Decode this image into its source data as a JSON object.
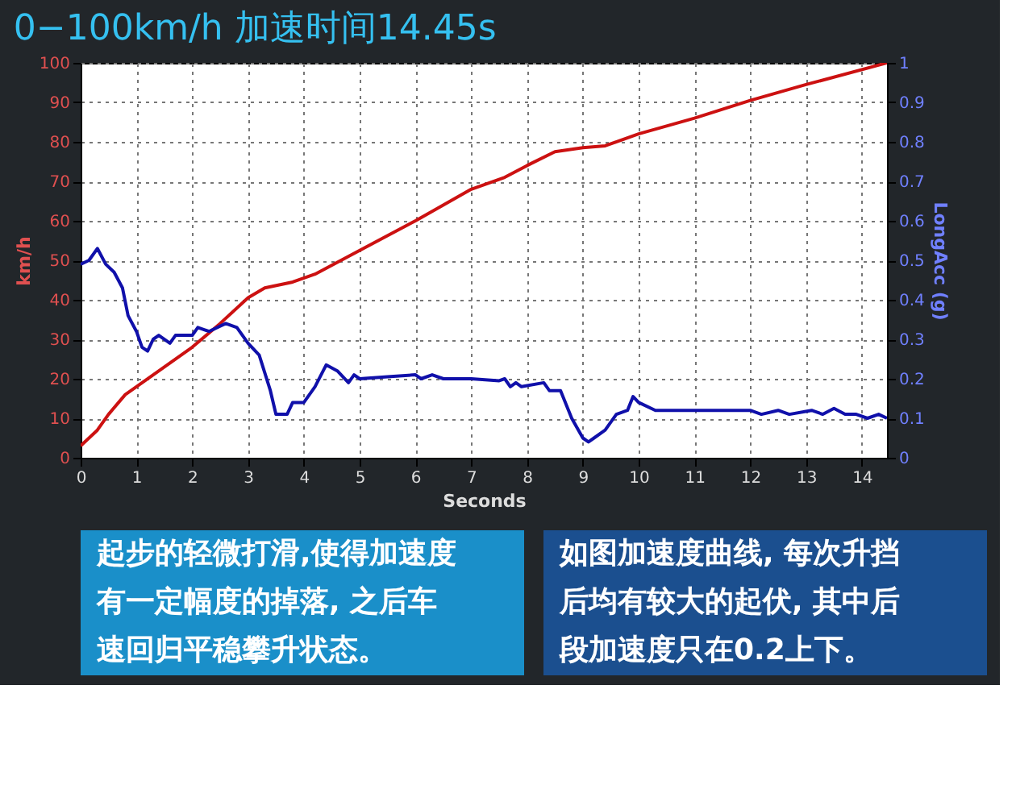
{
  "chart_data": {
    "type": "line",
    "title": "0−100km/h 加速时间14.45s",
    "xlabel": "Seconds",
    "ylabel": "km/h",
    "y2label": "LongAcc (g)",
    "xlim": [
      0,
      14.45
    ],
    "xticks": [
      0,
      1,
      2,
      3,
      4,
      5,
      6,
      7,
      8,
      9,
      10,
      11,
      12,
      13,
      14
    ],
    "ylim": [
      0,
      100
    ],
    "yticks": [
      0,
      10,
      20,
      30,
      40,
      50,
      60,
      70,
      80,
      90,
      100
    ],
    "y2lim": [
      0,
      1
    ],
    "y2ticks": [
      0,
      0.1,
      0.2,
      0.3,
      0.4,
      0.5,
      0.6,
      0.7,
      0.8,
      0.9,
      1
    ],
    "grid": true,
    "line_style": "solid",
    "series": [
      {
        "color": "#cc1111",
        "x": [
          0,
          0.3,
          0.5,
          0.8,
          1,
          1.5,
          2,
          2.5,
          3,
          3.3,
          3.8,
          4.2,
          5,
          6,
          7,
          7.6,
          8,
          8.5,
          9,
          9.4,
          10,
          11,
          12,
          13,
          14.45
        ],
        "values": [
          3,
          7,
          11,
          16,
          18,
          23,
          28,
          34,
          40.5,
          43,
          44.5,
          46.5,
          52.5,
          60,
          68,
          71,
          74,
          77.5,
          78.5,
          79,
          82,
          86,
          90.5,
          94.5,
          100
        ]
      },
      {
        "color": "#1010aa",
        "axis": "y2",
        "x": [
          0,
          0.15,
          0.3,
          0.45,
          0.6,
          0.75,
          0.85,
          1,
          1.1,
          1.2,
          1.3,
          1.4,
          1.6,
          1.7,
          2,
          2.1,
          2.3,
          2.6,
          2.8,
          3,
          3.2,
          3.4,
          3.5,
          3.7,
          3.8,
          4,
          4.2,
          4.4,
          4.6,
          4.8,
          4.9,
          5,
          5.5,
          6,
          6.1,
          6.3,
          6.5,
          7,
          7.5,
          7.6,
          7.7,
          7.8,
          7.9,
          8.3,
          8.4,
          8.6,
          8.8,
          9,
          9.1,
          9.2,
          9.4,
          9.6,
          9.8,
          9.9,
          10,
          10.3,
          11,
          11.5,
          12,
          12.2,
          12.5,
          12.7,
          13.1,
          13.3,
          13.5,
          13.7,
          13.9,
          14.1,
          14.3,
          14.45
        ],
        "values": [
          0.49,
          0.5,
          0.53,
          0.49,
          0.47,
          0.43,
          0.36,
          0.32,
          0.28,
          0.27,
          0.3,
          0.31,
          0.29,
          0.31,
          0.31,
          0.33,
          0.32,
          0.34,
          0.33,
          0.29,
          0.26,
          0.17,
          0.11,
          0.11,
          0.14,
          0.14,
          0.18,
          0.235,
          0.22,
          0.19,
          0.21,
          0.2,
          0.205,
          0.21,
          0.2,
          0.21,
          0.2,
          0.2,
          0.195,
          0.2,
          0.18,
          0.19,
          0.18,
          0.19,
          0.17,
          0.17,
          0.1,
          0.05,
          0.04,
          0.05,
          0.07,
          0.11,
          0.12,
          0.155,
          0.14,
          0.12,
          0.12,
          0.12,
          0.12,
          0.11,
          0.12,
          0.11,
          0.12,
          0.11,
          0.125,
          0.11,
          0.11,
          0.1,
          0.11,
          0.1
        ]
      }
    ],
    "annotations": [
      "起步的轻微打滑,使得加速度有一定幅度的掉落, 之后车速回归平稳攀升状态。",
      "如图加速度曲线, 每次升挡后均有较大的起伏, 其中后段加速度只在0.2上下。"
    ]
  }
}
